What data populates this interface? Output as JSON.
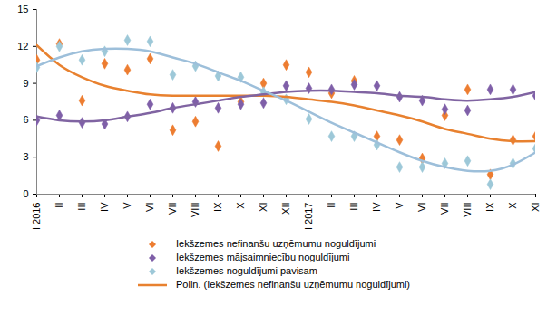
{
  "chart_data": {
    "type": "scatter",
    "categories": [
      "I 2016",
      "II",
      "III",
      "IV",
      "V",
      "VI",
      "VII",
      "VIII",
      "IX",
      "X",
      "XI",
      "XII",
      "I 2017",
      "II",
      "III",
      "IV",
      "V",
      "VI",
      "VII",
      "VIII",
      "IX",
      "X",
      "XI"
    ],
    "ylim": [
      0,
      15
    ],
    "yticks": [
      0,
      3,
      6,
      9,
      12,
      15
    ],
    "grid": false,
    "legend": "bottom",
    "series": [
      {
        "name": "Iekšzemes nefinanšu uzņēmumu noguldījumi",
        "type": "scatter",
        "marker": "diamond",
        "color": "#ED7D31",
        "values": [
          10.9,
          12.2,
          7.6,
          10.6,
          10.1,
          11.0,
          5.2,
          5.9,
          3.9,
          7.5,
          9.0,
          10.5,
          9.9,
          8.2,
          9.2,
          4.7,
          4.4,
          2.9,
          6.4,
          8.5,
          1.6,
          4.4,
          4.7
        ]
      },
      {
        "name": "Iekšzemes mājsaimniecību noguldījumi",
        "type": "scatter",
        "marker": "diamond",
        "color": "#7F5FA8",
        "values": [
          6.0,
          6.4,
          5.8,
          5.7,
          6.3,
          7.3,
          7.0,
          7.5,
          7.0,
          7.3,
          7.4,
          8.8,
          8.6,
          8.5,
          8.9,
          8.8,
          7.9,
          7.6,
          6.9,
          6.8,
          8.5,
          8.5,
          8.0
        ]
      },
      {
        "name": "Iekšzemes noguldījumi pavisam",
        "type": "scatter",
        "marker": "diamond",
        "color": "#9DC8D8",
        "values": [
          10.3,
          12.0,
          10.9,
          11.6,
          12.5,
          12.4,
          9.7,
          10.4,
          9.6,
          9.5,
          8.3,
          7.7,
          6.1,
          4.7,
          4.7,
          4.0,
          2.2,
          2.2,
          2.5,
          2.7,
          0.8,
          2.5,
          3.7
        ]
      },
      {
        "name": "Polin. (Iekšzemes nefinanšu uzņēmumu noguldījumi)",
        "type": "line",
        "line_style": "solid",
        "color": "#E8812F",
        "values": [
          12.1,
          10.5,
          9.5,
          8.8,
          8.4,
          8.1,
          8.0,
          8.0,
          8.0,
          8.0,
          8.0,
          7.9,
          7.7,
          7.5,
          7.2,
          6.8,
          6.4,
          5.9,
          5.3,
          4.9,
          4.5,
          4.3,
          4.3
        ]
      },
      {
        "type": "line",
        "line_style": "solid",
        "color": "#8064A2",
        "values": [
          6.3,
          6.0,
          5.9,
          6.0,
          6.3,
          6.6,
          7.0,
          7.3,
          7.6,
          7.9,
          8.1,
          8.3,
          8.4,
          8.4,
          8.3,
          8.2,
          8.0,
          7.9,
          7.7,
          7.6,
          7.7,
          7.9,
          8.3
        ]
      },
      {
        "type": "line",
        "line_style": "solid",
        "color": "#9DBFDA",
        "values": [
          10.4,
          11.1,
          11.6,
          11.8,
          11.8,
          11.6,
          11.1,
          10.6,
          9.9,
          9.2,
          8.4,
          7.6,
          6.7,
          5.8,
          5.0,
          4.2,
          3.4,
          2.7,
          2.2,
          1.9,
          1.9,
          2.4,
          3.4
        ]
      }
    ]
  }
}
